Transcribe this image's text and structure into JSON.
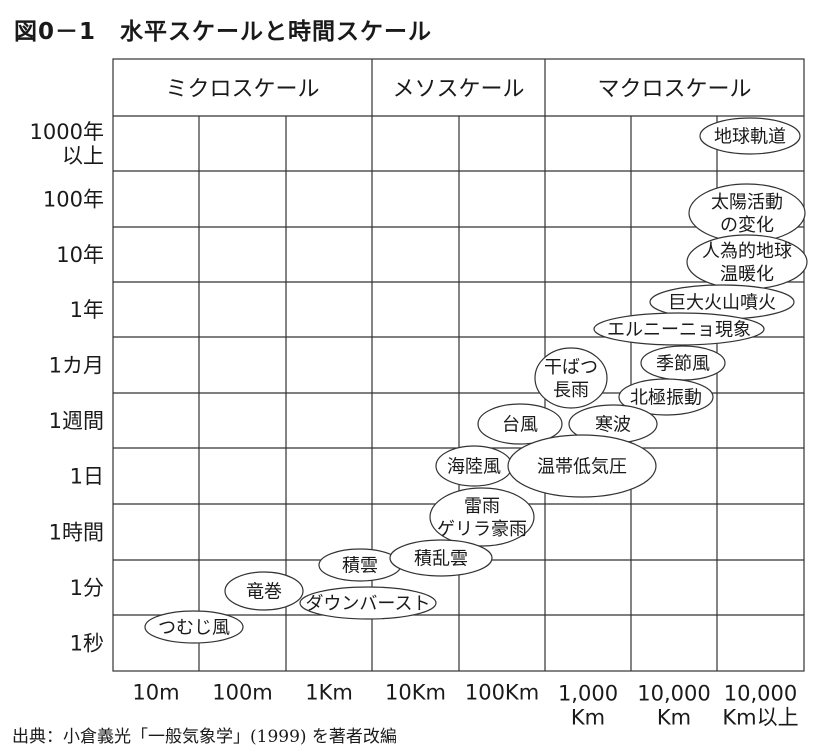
{
  "title": "図0－1　水平スケールと時間スケール",
  "source": "出典：小倉義光「一般気象学」(1999) を著者改編",
  "scale_headers": [
    "ミクロスケール",
    "メソスケール",
    "マクロスケール"
  ],
  "time_scale": [
    [
      "1000年",
      "以上"
    ],
    [
      "100年"
    ],
    [
      "10年"
    ],
    [
      "1年"
    ],
    [
      "1カ月"
    ],
    [
      "1週間"
    ],
    [
      "1日"
    ],
    [
      "1時間"
    ],
    [
      "1分"
    ],
    [
      "1秒"
    ]
  ],
  "horizontal_scale": [
    [
      "10m"
    ],
    [
      "100m"
    ],
    [
      "1Km"
    ],
    [
      "10Km"
    ],
    [
      "100Km"
    ],
    [
      "1,000",
      "Km"
    ],
    [
      "10,000",
      "Km"
    ],
    [
      "10,000",
      "Km以上"
    ]
  ],
  "phenomena": [
    [
      "地球軌道"
    ],
    [
      "太陽活動",
      "の変化"
    ],
    [
      "人為的地球",
      "温暖化"
    ],
    [
      "巨大火山噴火"
    ],
    [
      "エルニーニョ現象"
    ],
    [
      "季節風"
    ],
    [
      "干ばつ",
      "長雨"
    ],
    [
      "北極振動"
    ],
    [
      "台風"
    ],
    [
      "寒波"
    ],
    [
      "海陸風"
    ],
    [
      "温帯低気圧"
    ],
    [
      "雷雨",
      "ゲリラ豪雨"
    ],
    [
      "積雲"
    ],
    [
      "積乱雲"
    ],
    [
      "竜巻"
    ],
    [
      "ダウンバースト"
    ],
    [
      "つむじ風"
    ]
  ]
}
